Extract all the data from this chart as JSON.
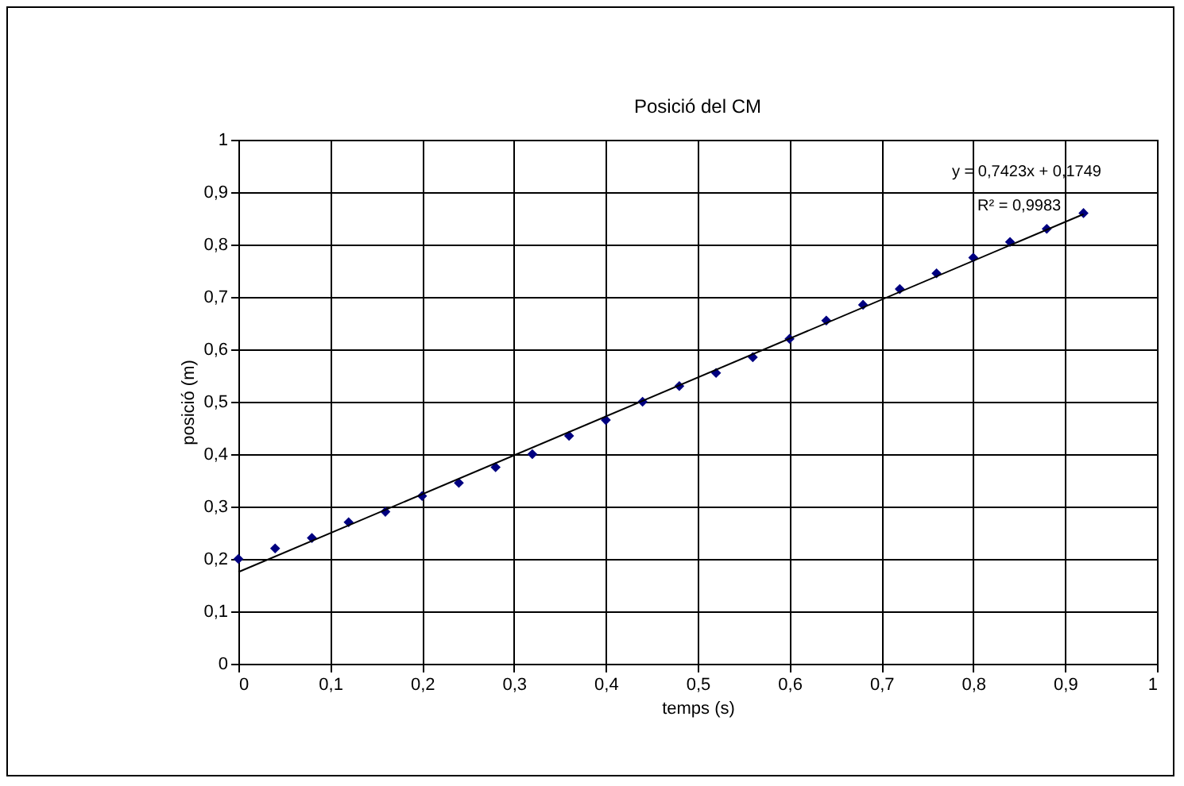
{
  "chart_data": {
    "type": "scatter",
    "title": "Posició del CM",
    "xlabel": "temps (s)",
    "ylabel": "posició (m)",
    "annotations": [
      "y = 0,7423x + 0,1749",
      "R² = 0,9983"
    ],
    "xlim": [
      0,
      1
    ],
    "ylim": [
      0,
      1
    ],
    "xticks": [
      0,
      {
        "value": 0.1,
        "label": "0,1"
      },
      {
        "value": 0.2,
        "label": "0,2"
      },
      {
        "value": 0.3,
        "label": "0,3"
      },
      {
        "value": 0.4,
        "label": "0,4"
      },
      {
        "value": 0.5,
        "label": "0,5"
      },
      {
        "value": 0.6,
        "label": "0,6"
      },
      {
        "value": 0.7,
        "label": "0,7"
      },
      {
        "value": 0.8,
        "label": "0,8"
      },
      {
        "value": 0.9,
        "label": "0,9"
      },
      1
    ],
    "yticks": [
      0,
      {
        "value": 0.1,
        "label": "0,1"
      },
      {
        "value": 0.2,
        "label": "0,2"
      },
      {
        "value": 0.3,
        "label": "0,3"
      },
      {
        "value": 0.4,
        "label": "0,4"
      },
      {
        "value": 0.5,
        "label": "0,5"
      },
      {
        "value": 0.6,
        "label": "0,6"
      },
      {
        "value": 0.7,
        "label": "0,7"
      },
      {
        "value": 0.8,
        "label": "0,8"
      },
      {
        "value": 0.9,
        "label": "0,9"
      },
      1
    ],
    "grid": true,
    "series": [
      {
        "marker": "diamond",
        "color": "#000080",
        "x": [
          0,
          0.04,
          0.08,
          0.12,
          0.16,
          0.2,
          0.24,
          0.28,
          0.32,
          0.36,
          0.4,
          0.44,
          0.48,
          0.52,
          0.56,
          0.6,
          0.64,
          0.68,
          0.72,
          0.76,
          0.8,
          0.84,
          0.88,
          0.92
        ],
        "values": [
          0.2,
          0.22,
          0.24,
          0.27,
          0.29,
          0.32,
          0.345,
          0.375,
          0.4,
          0.435,
          0.465,
          0.5,
          0.53,
          0.555,
          0.585,
          0.62,
          0.655,
          0.685,
          0.715,
          0.745,
          0.775,
          0.805,
          0.83,
          0.86
        ]
      },
      {
        "type": "line",
        "color": "#000000",
        "x": [
          0,
          0.92
        ],
        "values": [
          0.175,
          0.858
        ]
      }
    ]
  }
}
